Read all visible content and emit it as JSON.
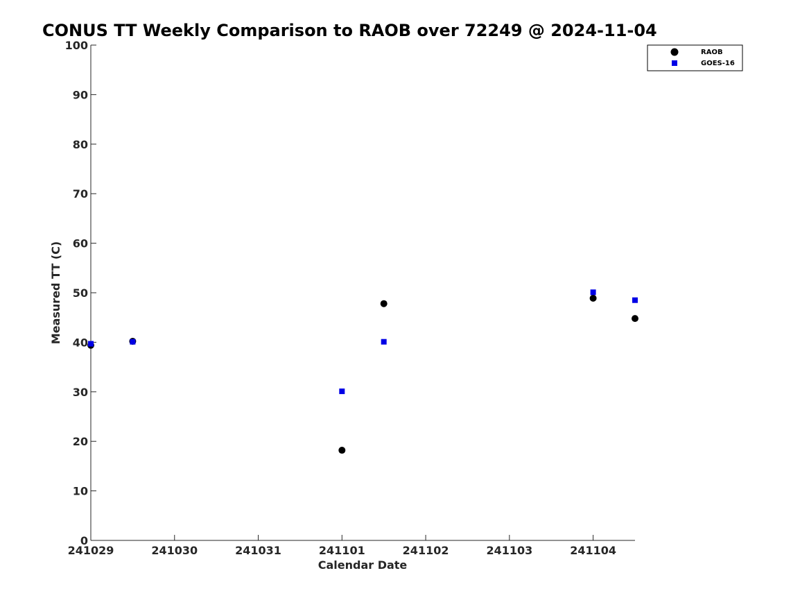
{
  "chart_data": {
    "type": "scatter",
    "title": "CONUS TT Weekly Comparison to RAOB over 72249 @ 2024-11-04",
    "xlabel": "Calendar Date",
    "ylabel": "Measured TT (C)",
    "x_tick_labels": [
      "241029",
      "241030",
      "241031",
      "241101",
      "241102",
      "241103",
      "241104"
    ],
    "y_tick_labels": [
      "0",
      "10",
      "20",
      "30",
      "40",
      "50",
      "60",
      "70",
      "80",
      "90",
      "100"
    ],
    "ylim": [
      0,
      100
    ],
    "xlim": [
      "2024-10-29 00Z",
      "2024-11-04 12Z"
    ],
    "grid": false,
    "legend_position": "top-right",
    "series": [
      {
        "name": "RAOB",
        "marker": "circle",
        "color": "#000000",
        "points": [
          {
            "x": "2024-10-29 00Z",
            "y": 39.4
          },
          {
            "x": "2024-10-29 12Z",
            "y": 40.2
          },
          {
            "x": "2024-11-01 00Z",
            "y": 18.2
          },
          {
            "x": "2024-11-01 12Z",
            "y": 47.8
          },
          {
            "x": "2024-11-04 00Z",
            "y": 48.9
          },
          {
            "x": "2024-11-04 12Z",
            "y": 44.8
          }
        ]
      },
      {
        "name": "GOES-16",
        "marker": "square",
        "color": "#0000e6",
        "points": [
          {
            "x": "2024-10-29 00Z",
            "y": 39.7
          },
          {
            "x": "2024-10-29 12Z",
            "y": 40.1
          },
          {
            "x": "2024-11-01 00Z",
            "y": 30.1
          },
          {
            "x": "2024-11-01 12Z",
            "y": 40.1
          },
          {
            "x": "2024-11-04 00Z",
            "y": 50.1
          },
          {
            "x": "2024-11-04 12Z",
            "y": 48.5
          }
        ]
      }
    ]
  }
}
